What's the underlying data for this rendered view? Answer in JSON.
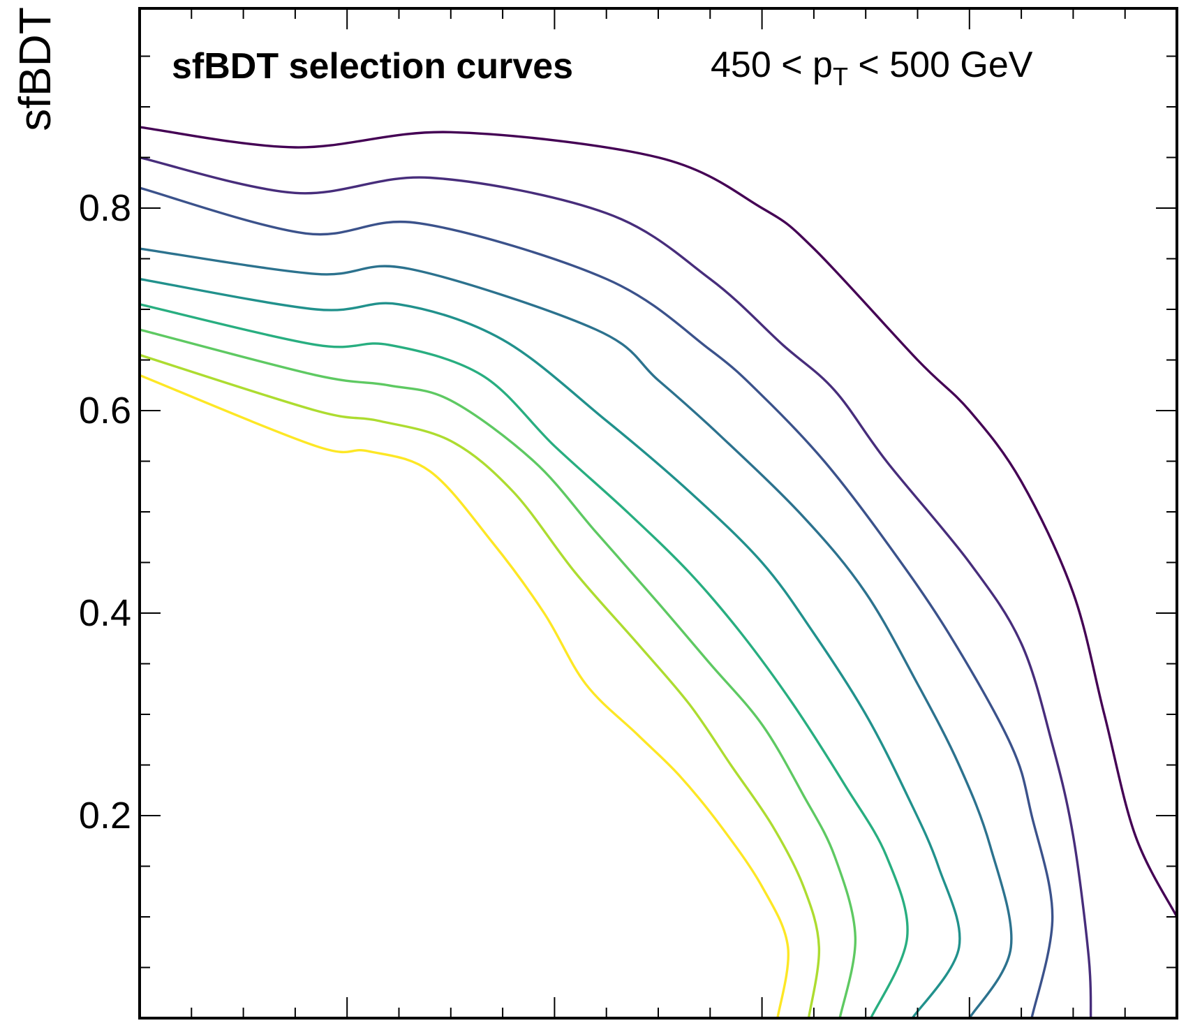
{
  "chart_data": {
    "type": "line",
    "title": "sfBDT selection curves",
    "subtitle": {
      "prefix": "450 < p",
      "sub": "T",
      "suffix": " < 500 GeV"
    },
    "ylabel": "sfBDT",
    "xlabel": "",
    "xlim": [
      0,
      1
    ],
    "ylim": [
      0,
      1
    ],
    "y_ticks": [
      0.2,
      0.4,
      0.6,
      0.8
    ],
    "y_tick_labels": [
      "0.2",
      "0.4",
      "0.6",
      "0.8"
    ],
    "grid": false,
    "series": [
      {
        "color": "#440154",
        "points": [
          [
            0,
            0.88
          ],
          [
            0.15,
            0.86
          ],
          [
            0.3,
            0.875
          ],
          [
            0.5,
            0.85
          ],
          [
            0.6,
            0.8
          ],
          [
            0.65,
            0.76
          ],
          [
            0.75,
            0.65
          ],
          [
            0.8,
            0.6
          ],
          [
            0.85,
            0.53
          ],
          [
            0.9,
            0.42
          ],
          [
            0.93,
            0.3
          ],
          [
            0.96,
            0.18
          ],
          [
            1.0,
            0.1
          ]
        ]
      },
      {
        "color": "#472d7b",
        "points": [
          [
            0,
            0.85
          ],
          [
            0.15,
            0.815
          ],
          [
            0.28,
            0.83
          ],
          [
            0.45,
            0.795
          ],
          [
            0.55,
            0.73
          ],
          [
            0.62,
            0.665
          ],
          [
            0.67,
            0.62
          ],
          [
            0.72,
            0.55
          ],
          [
            0.8,
            0.45
          ],
          [
            0.85,
            0.37
          ],
          [
            0.88,
            0.27
          ],
          [
            0.9,
            0.18
          ],
          [
            0.915,
            0.06
          ],
          [
            0.917,
            0.0
          ]
        ]
      },
      {
        "color": "#3b528b",
        "points": [
          [
            0,
            0.82
          ],
          [
            0.16,
            0.775
          ],
          [
            0.27,
            0.785
          ],
          [
            0.45,
            0.73
          ],
          [
            0.55,
            0.66
          ],
          [
            0.6,
            0.615
          ],
          [
            0.66,
            0.55
          ],
          [
            0.72,
            0.47
          ],
          [
            0.78,
            0.38
          ],
          [
            0.84,
            0.27
          ],
          [
            0.86,
            0.2
          ],
          [
            0.88,
            0.1
          ],
          [
            0.86,
            0.0
          ]
        ]
      },
      {
        "color": "#2c728e",
        "points": [
          [
            0,
            0.76
          ],
          [
            0.17,
            0.735
          ],
          [
            0.26,
            0.74
          ],
          [
            0.44,
            0.68
          ],
          [
            0.5,
            0.63
          ],
          [
            0.56,
            0.575
          ],
          [
            0.64,
            0.495
          ],
          [
            0.7,
            0.42
          ],
          [
            0.75,
            0.33
          ],
          [
            0.79,
            0.25
          ],
          [
            0.82,
            0.17
          ],
          [
            0.84,
            0.07
          ],
          [
            0.8,
            0.0
          ]
        ]
      },
      {
        "color": "#21918c",
        "points": [
          [
            0,
            0.73
          ],
          [
            0.17,
            0.7
          ],
          [
            0.25,
            0.705
          ],
          [
            0.35,
            0.67
          ],
          [
            0.45,
            0.59
          ],
          [
            0.53,
            0.52
          ],
          [
            0.6,
            0.45
          ],
          [
            0.65,
            0.38
          ],
          [
            0.7,
            0.3
          ],
          [
            0.74,
            0.22
          ],
          [
            0.77,
            0.15
          ],
          [
            0.79,
            0.07
          ],
          [
            0.745,
            0.0
          ]
        ]
      },
      {
        "color": "#28ae80",
        "points": [
          [
            0,
            0.705
          ],
          [
            0.17,
            0.665
          ],
          [
            0.24,
            0.665
          ],
          [
            0.33,
            0.635
          ],
          [
            0.4,
            0.565
          ],
          [
            0.47,
            0.5
          ],
          [
            0.53,
            0.44
          ],
          [
            0.58,
            0.38
          ],
          [
            0.63,
            0.31
          ],
          [
            0.68,
            0.23
          ],
          [
            0.72,
            0.16
          ],
          [
            0.74,
            0.08
          ],
          [
            0.705,
            0.0
          ]
        ]
      },
      {
        "color": "#5ec962",
        "points": [
          [
            0,
            0.68
          ],
          [
            0.17,
            0.635
          ],
          [
            0.24,
            0.625
          ],
          [
            0.3,
            0.61
          ],
          [
            0.38,
            0.55
          ],
          [
            0.44,
            0.48
          ],
          [
            0.5,
            0.41
          ],
          [
            0.55,
            0.35
          ],
          [
            0.6,
            0.29
          ],
          [
            0.64,
            0.22
          ],
          [
            0.67,
            0.16
          ],
          [
            0.69,
            0.08
          ],
          [
            0.675,
            0.0
          ]
        ]
      },
      {
        "color": "#addc30",
        "points": [
          [
            0,
            0.655
          ],
          [
            0.17,
            0.6
          ],
          [
            0.23,
            0.59
          ],
          [
            0.3,
            0.57
          ],
          [
            0.36,
            0.52
          ],
          [
            0.42,
            0.44
          ],
          [
            0.48,
            0.37
          ],
          [
            0.53,
            0.31
          ],
          [
            0.57,
            0.25
          ],
          [
            0.61,
            0.19
          ],
          [
            0.64,
            0.13
          ],
          [
            0.655,
            0.07
          ],
          [
            0.645,
            0.0
          ]
        ]
      },
      {
        "color": "#fde725",
        "points": [
          [
            0,
            0.635
          ],
          [
            0.17,
            0.565
          ],
          [
            0.22,
            0.56
          ],
          [
            0.28,
            0.54
          ],
          [
            0.34,
            0.47
          ],
          [
            0.39,
            0.4
          ],
          [
            0.43,
            0.33
          ],
          [
            0.48,
            0.28
          ],
          [
            0.52,
            0.24
          ],
          [
            0.56,
            0.19
          ],
          [
            0.6,
            0.13
          ],
          [
            0.625,
            0.07
          ],
          [
            0.615,
            0.0
          ]
        ]
      }
    ]
  }
}
